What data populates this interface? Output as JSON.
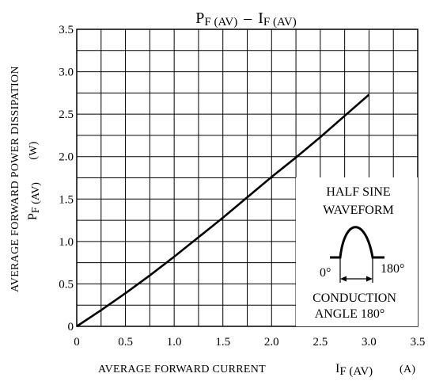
{
  "chart_data": {
    "type": "line",
    "title_main": "P",
    "title_main_sub": "F (AV)",
    "title_sep": "–",
    "title_second": "I",
    "title_second_sub": "F (AV)",
    "xlabel": "AVERAGE FORWARD CURRENT",
    "xlabel_symbol": "I",
    "xlabel_symbol_sub": "F (AV)",
    "xlabel_unit": "(A)",
    "ylabel_line1": "AVERAGE FORWARD POWER DISSIPATION",
    "ylabel_symbol": "P",
    "ylabel_symbol_sub": "F (AV)",
    "ylabel_unit": "(W)",
    "xlim": [
      0,
      3.5
    ],
    "ylim": [
      0,
      3.5
    ],
    "x_ticks": [
      "0",
      "0.5",
      "1.0",
      "1.5",
      "2.0",
      "2.5",
      "3.0",
      "3.5"
    ],
    "y_ticks": [
      "0",
      "0.5",
      "1.0",
      "1.5",
      "2.0",
      "2.5",
      "3.0",
      "3.5"
    ],
    "grid": true,
    "series": [
      {
        "x": [
          0,
          0.25,
          0.5,
          0.75,
          1.0,
          1.25,
          1.5,
          1.75,
          2.0,
          2.25,
          2.5,
          2.75,
          3.0
        ],
        "y": [
          0,
          0.19,
          0.39,
          0.6,
          0.82,
          1.05,
          1.28,
          1.52,
          1.76,
          1.99,
          2.23,
          2.48,
          2.73
        ]
      }
    ],
    "annotation": {
      "line1": "HALF SINE",
      "line2": "WAVEFORM",
      "angle_start": "0°",
      "angle_end": "180°",
      "line3": "CONDUCTION",
      "line4": "ANGLE 180°"
    }
  }
}
